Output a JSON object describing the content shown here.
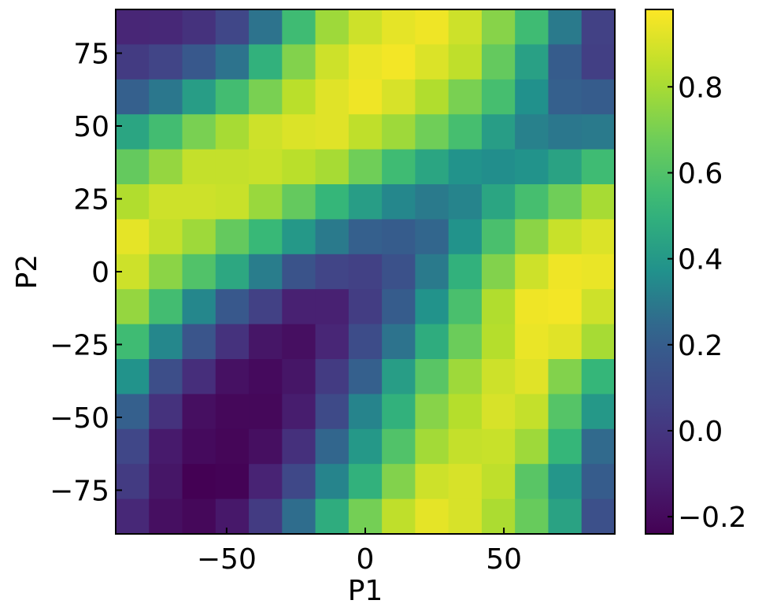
{
  "chart_data": {
    "type": "heatmap",
    "xlabel": "P1",
    "ylabel": "P2",
    "xlim": [
      -90,
      90
    ],
    "ylim": [
      -90,
      90
    ],
    "x_ticks": [
      -50,
      0,
      50
    ],
    "x_tick_labels": [
      "−50",
      "0",
      "50"
    ],
    "y_ticks": [
      -75,
      -50,
      -25,
      0,
      25,
      50,
      75
    ],
    "y_tick_labels": [
      "−75",
      "−50",
      "−25",
      "0",
      "25",
      "50",
      "75"
    ],
    "x_centers": [
      -84,
      -72,
      -60,
      -48,
      -36,
      -24,
      -12,
      0,
      12,
      24,
      36,
      48,
      60,
      72,
      84
    ],
    "y_centers": [
      84,
      72,
      60,
      48,
      36,
      24,
      12,
      0,
      -12,
      -24,
      -36,
      -48,
      -60,
      -72,
      -84
    ],
    "values": [
      [
        -0.08,
        -0.07,
        -0.02,
        0.08,
        0.28,
        0.55,
        0.78,
        0.88,
        0.93,
        0.95,
        0.88,
        0.73,
        0.55,
        0.3,
        0.05
      ],
      [
        0.02,
        0.07,
        0.18,
        0.28,
        0.5,
        0.72,
        0.88,
        0.94,
        0.96,
        0.91,
        0.85,
        0.65,
        0.43,
        0.2,
        0.04
      ],
      [
        0.22,
        0.29,
        0.42,
        0.56,
        0.7,
        0.84,
        0.92,
        0.95,
        0.9,
        0.82,
        0.7,
        0.57,
        0.37,
        0.22,
        0.2
      ],
      [
        0.45,
        0.56,
        0.7,
        0.8,
        0.88,
        0.91,
        0.92,
        0.85,
        0.78,
        0.68,
        0.57,
        0.42,
        0.32,
        0.29,
        0.3
      ],
      [
        0.65,
        0.76,
        0.86,
        0.86,
        0.87,
        0.84,
        0.8,
        0.68,
        0.55,
        0.45,
        0.38,
        0.36,
        0.38,
        0.44,
        0.55
      ],
      [
        0.82,
        0.88,
        0.88,
        0.87,
        0.77,
        0.65,
        0.52,
        0.42,
        0.34,
        0.3,
        0.33,
        0.45,
        0.57,
        0.68,
        0.8
      ],
      [
        0.93,
        0.86,
        0.78,
        0.65,
        0.53,
        0.4,
        0.3,
        0.22,
        0.2,
        0.24,
        0.38,
        0.58,
        0.74,
        0.87,
        0.91
      ],
      [
        0.88,
        0.74,
        0.6,
        0.46,
        0.31,
        0.15,
        0.07,
        0.05,
        0.14,
        0.3,
        0.5,
        0.72,
        0.88,
        0.95,
        0.94
      ],
      [
        0.76,
        0.56,
        0.34,
        0.18,
        0.05,
        -0.1,
        -0.1,
        0.03,
        0.2,
        0.38,
        0.58,
        0.82,
        0.95,
        0.96,
        0.88
      ],
      [
        0.55,
        0.34,
        0.16,
        -0.02,
        -0.15,
        -0.18,
        -0.08,
        0.11,
        0.28,
        0.48,
        0.67,
        0.83,
        0.94,
        0.92,
        0.8
      ],
      [
        0.38,
        0.12,
        -0.04,
        -0.17,
        -0.2,
        -0.15,
        0.02,
        0.22,
        0.42,
        0.62,
        0.78,
        0.88,
        0.92,
        0.72,
        0.52
      ],
      [
        0.22,
        -0.02,
        -0.18,
        -0.21,
        -0.21,
        -0.12,
        0.1,
        0.33,
        0.5,
        0.73,
        0.83,
        0.9,
        0.86,
        0.61,
        0.4
      ],
      [
        0.08,
        -0.13,
        -0.2,
        -0.22,
        -0.18,
        -0.03,
        0.24,
        0.4,
        0.6,
        0.79,
        0.86,
        0.87,
        0.78,
        0.52,
        0.25
      ],
      [
        0.02,
        -0.15,
        -0.24,
        -0.23,
        -0.09,
        0.09,
        0.33,
        0.5,
        0.72,
        0.88,
        0.9,
        0.85,
        0.62,
        0.39,
        0.2
      ],
      [
        -0.07,
        -0.18,
        -0.21,
        -0.14,
        0.02,
        0.26,
        0.48,
        0.69,
        0.85,
        0.93,
        0.9,
        0.81,
        0.66,
        0.44,
        0.13
      ]
    ],
    "colorscale": "viridis",
    "vmin": -0.24,
    "vmax": 0.98,
    "colorbar_ticks": [
      -0.2,
      0.0,
      0.2,
      0.4,
      0.6,
      0.8
    ],
    "colorbar_tick_labels": [
      "−0.2",
      "0.0",
      "0.2",
      "0.4",
      "0.6",
      "0.8"
    ]
  }
}
